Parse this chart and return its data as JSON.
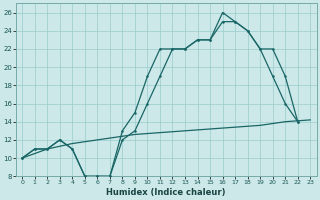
{
  "xlabel": "Humidex (Indice chaleur)",
  "bg_color": "#cce8e8",
  "grid_color": "#99cccc",
  "line_color": "#1a6666",
  "xlim": [
    -0.5,
    23.5
  ],
  "ylim": [
    8,
    27
  ],
  "xticks": [
    0,
    1,
    2,
    3,
    4,
    5,
    6,
    7,
    8,
    9,
    10,
    11,
    12,
    13,
    14,
    15,
    16,
    17,
    18,
    19,
    20,
    21,
    22,
    23
  ],
  "yticks": [
    8,
    10,
    12,
    14,
    16,
    18,
    20,
    22,
    24,
    26
  ],
  "line1_x": [
    0,
    1,
    2,
    3,
    4,
    5,
    6,
    7,
    8,
    9,
    10,
    11,
    12,
    13,
    14,
    15,
    16,
    17,
    18,
    19,
    20,
    21,
    22
  ],
  "line1_y": [
    10,
    11,
    11,
    12,
    11,
    8,
    8,
    8,
    13,
    15,
    19,
    22,
    22,
    22,
    23,
    23,
    26,
    25,
    24,
    22,
    19,
    16,
    14
  ],
  "line2_x": [
    0,
    1,
    2,
    3,
    4,
    5,
    6,
    7,
    8,
    9,
    10,
    11,
    12,
    13,
    14,
    15,
    16,
    17,
    18,
    19,
    20,
    21,
    22
  ],
  "line2_y": [
    10,
    11,
    11,
    12,
    11,
    8,
    8,
    8,
    12,
    13,
    16,
    19,
    22,
    22,
    23,
    23,
    25,
    25,
    24,
    22,
    22,
    19,
    14
  ],
  "line3_x": [
    0,
    1,
    2,
    3,
    4,
    5,
    6,
    7,
    8,
    9,
    10,
    11,
    12,
    13,
    14,
    15,
    16,
    17,
    18,
    19,
    20,
    21,
    22,
    23
  ],
  "line3_y": [
    10,
    10.5,
    11,
    11.3,
    11.6,
    11.8,
    12.0,
    12.2,
    12.4,
    12.6,
    12.7,
    12.8,
    12.9,
    13.0,
    13.1,
    13.2,
    13.3,
    13.4,
    13.5,
    13.6,
    13.8,
    14.0,
    14.1,
    14.2
  ]
}
